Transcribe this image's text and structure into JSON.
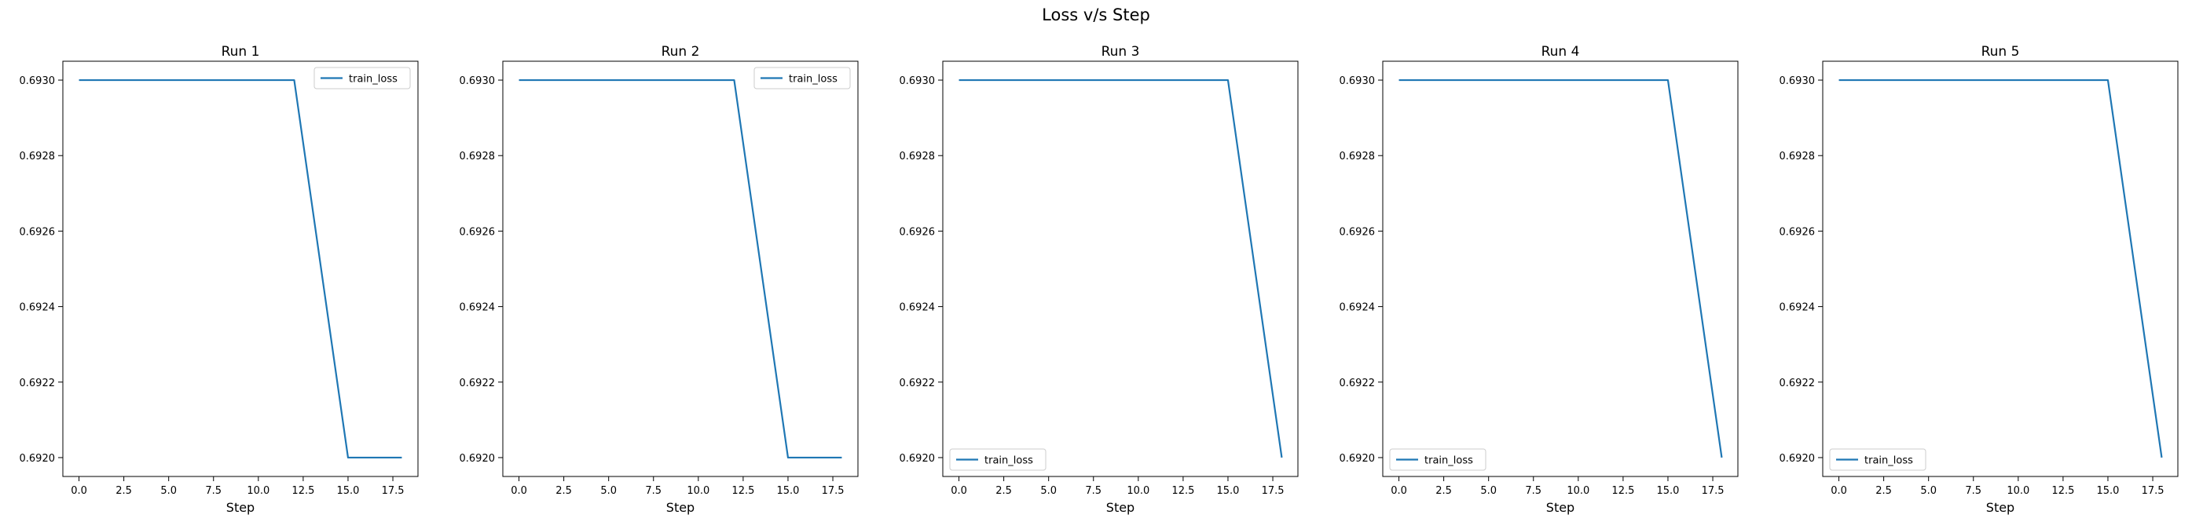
{
  "figure": {
    "title": "Loss v/s Step"
  },
  "colors": {
    "line": "#1f77b4",
    "axis": "#000000",
    "legend_border": "#cccccc",
    "background": "#ffffff"
  },
  "chart_data": [
    {
      "type": "line",
      "title": "Run 1",
      "xlabel": "Step",
      "ylabel": "",
      "xlim": [
        -0.9,
        18.9
      ],
      "ylim": [
        0.69195,
        0.69305
      ],
      "xticks": [
        0.0,
        2.5,
        5.0,
        7.5,
        10.0,
        12.5,
        15.0,
        17.5
      ],
      "xtick_labels": [
        "0.0",
        "2.5",
        "5.0",
        "7.5",
        "10.0",
        "12.5",
        "15.0",
        "17.5"
      ],
      "yticks": [
        0.692,
        0.6922,
        0.6924,
        0.6926,
        0.6928,
        0.693
      ],
      "ytick_labels": [
        "0.6920",
        "0.6922",
        "0.6924",
        "0.6926",
        "0.6928",
        "0.6930"
      ],
      "grid": false,
      "legend": "upper-right",
      "series": [
        {
          "name": "train_loss",
          "x": [
            0,
            3,
            6,
            9,
            12,
            15,
            18
          ],
          "y": [
            0.693,
            0.693,
            0.693,
            0.693,
            0.693,
            0.692,
            0.692
          ]
        }
      ]
    },
    {
      "type": "line",
      "title": "Run 2",
      "xlabel": "Step",
      "ylabel": "",
      "xlim": [
        -0.9,
        18.9
      ],
      "ylim": [
        0.69195,
        0.69305
      ],
      "xticks": [
        0.0,
        2.5,
        5.0,
        7.5,
        10.0,
        12.5,
        15.0,
        17.5
      ],
      "xtick_labels": [
        "0.0",
        "2.5",
        "5.0",
        "7.5",
        "10.0",
        "12.5",
        "15.0",
        "17.5"
      ],
      "yticks": [
        0.692,
        0.6922,
        0.6924,
        0.6926,
        0.6928,
        0.693
      ],
      "ytick_labels": [
        "0.6920",
        "0.6922",
        "0.6924",
        "0.6926",
        "0.6928",
        "0.6930"
      ],
      "grid": false,
      "legend": "upper-right",
      "series": [
        {
          "name": "train_loss",
          "x": [
            0,
            3,
            6,
            9,
            12,
            15,
            18
          ],
          "y": [
            0.693,
            0.693,
            0.693,
            0.693,
            0.693,
            0.692,
            0.692
          ]
        }
      ]
    },
    {
      "type": "line",
      "title": "Run 3",
      "xlabel": "Step",
      "ylabel": "",
      "xlim": [
        -0.9,
        18.9
      ],
      "ylim": [
        0.69195,
        0.69305
      ],
      "xticks": [
        0.0,
        2.5,
        5.0,
        7.5,
        10.0,
        12.5,
        15.0,
        17.5
      ],
      "xtick_labels": [
        "0.0",
        "2.5",
        "5.0",
        "7.5",
        "10.0",
        "12.5",
        "15.0",
        "17.5"
      ],
      "yticks": [
        0.692,
        0.6922,
        0.6924,
        0.6926,
        0.6928,
        0.693
      ],
      "ytick_labels": [
        "0.6920",
        "0.6922",
        "0.6924",
        "0.6926",
        "0.6928",
        "0.6930"
      ],
      "grid": false,
      "legend": "lower-left",
      "series": [
        {
          "name": "train_loss",
          "x": [
            0,
            3,
            6,
            9,
            12,
            15,
            18
          ],
          "y": [
            0.693,
            0.693,
            0.693,
            0.693,
            0.693,
            0.693,
            0.692
          ]
        }
      ]
    },
    {
      "type": "line",
      "title": "Run 4",
      "xlabel": "Step",
      "ylabel": "",
      "xlim": [
        -0.9,
        18.9
      ],
      "ylim": [
        0.69195,
        0.69305
      ],
      "xticks": [
        0.0,
        2.5,
        5.0,
        7.5,
        10.0,
        12.5,
        15.0,
        17.5
      ],
      "xtick_labels": [
        "0.0",
        "2.5",
        "5.0",
        "7.5",
        "10.0",
        "12.5",
        "15.0",
        "17.5"
      ],
      "yticks": [
        0.692,
        0.6922,
        0.6924,
        0.6926,
        0.6928,
        0.693
      ],
      "ytick_labels": [
        "0.6920",
        "0.6922",
        "0.6924",
        "0.6926",
        "0.6928",
        "0.6930"
      ],
      "grid": false,
      "legend": "lower-left",
      "series": [
        {
          "name": "train_loss",
          "x": [
            0,
            3,
            6,
            9,
            12,
            15,
            18
          ],
          "y": [
            0.693,
            0.693,
            0.693,
            0.693,
            0.693,
            0.693,
            0.692
          ]
        }
      ]
    },
    {
      "type": "line",
      "title": "Run 5",
      "xlabel": "Step",
      "ylabel": "",
      "xlim": [
        -0.9,
        18.9
      ],
      "ylim": [
        0.69195,
        0.69305
      ],
      "xticks": [
        0.0,
        2.5,
        5.0,
        7.5,
        10.0,
        12.5,
        15.0,
        17.5
      ],
      "xtick_labels": [
        "0.0",
        "2.5",
        "5.0",
        "7.5",
        "10.0",
        "12.5",
        "15.0",
        "17.5"
      ],
      "yticks": [
        0.692,
        0.6922,
        0.6924,
        0.6926,
        0.6928,
        0.693
      ],
      "ytick_labels": [
        "0.6920",
        "0.6922",
        "0.6924",
        "0.6926",
        "0.6928",
        "0.6930"
      ],
      "grid": false,
      "legend": "lower-left",
      "series": [
        {
          "name": "train_loss",
          "x": [
            0,
            3,
            6,
            9,
            12,
            15,
            18
          ],
          "y": [
            0.693,
            0.693,
            0.693,
            0.693,
            0.693,
            0.693,
            0.692
          ]
        }
      ]
    }
  ]
}
